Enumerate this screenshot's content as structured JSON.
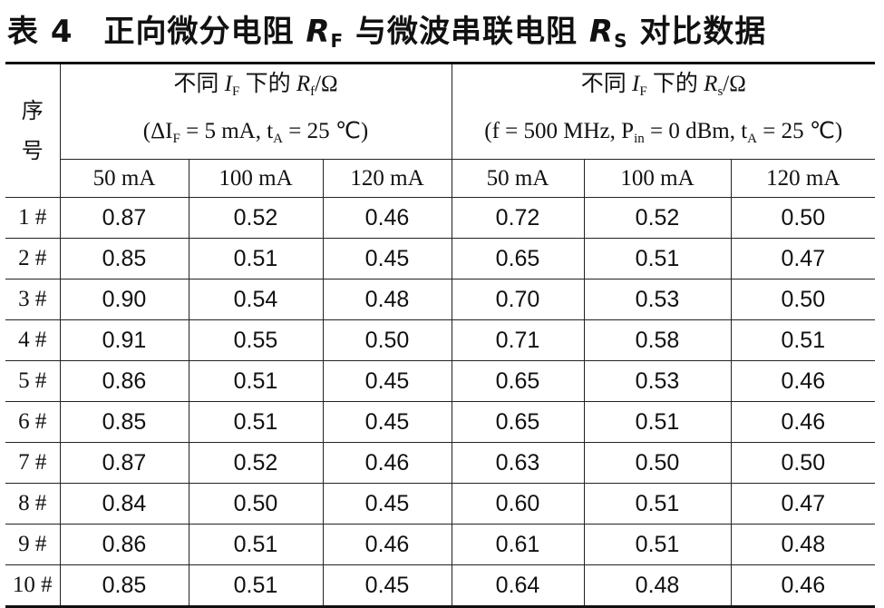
{
  "title": {
    "prefix": "表 4",
    "text_a": "正向微分电阻",
    "sym_a": "R",
    "sub_a": "F",
    "text_b": "与微波串联电阻",
    "sym_b": "R",
    "sub_b": "S",
    "text_c": "对比数据"
  },
  "table": {
    "index_header": [
      "序",
      "号"
    ],
    "group_rf": {
      "line1_pre": "不同",
      "line1_sym": "I",
      "line1_sub": "F",
      "line1_mid": "下的",
      "line1_sym2": "R",
      "line1_sub2": "f",
      "line1_unit": "/Ω",
      "line2": "(ΔI",
      "line2_sub": "F",
      "line2_rest": " = 5 mA, t",
      "line2_sub2": "A",
      "line2_end": " = 25 ℃)"
    },
    "group_rs": {
      "line1_pre": "不同",
      "line1_sym": "I",
      "line1_sub": "F",
      "line1_mid": "下的",
      "line1_sym2": "R",
      "line1_sub2": "s",
      "line1_unit": "/Ω",
      "line2": "(f = 500 MHz, P",
      "line2_sub": "in",
      "line2_rest": " = 0 dBm, t",
      "line2_sub2": "A",
      "line2_end": " = 25 ℃)"
    },
    "columns": [
      "50 mA",
      "100 mA",
      "120 mA",
      "50 mA",
      "100 mA",
      "120 mA"
    ],
    "rows": [
      {
        "id": "1 #",
        "values": [
          "0.87",
          "0.52",
          "0.46",
          "0.72",
          "0.52",
          "0.50"
        ]
      },
      {
        "id": "2 #",
        "values": [
          "0.85",
          "0.51",
          "0.45",
          "0.65",
          "0.51",
          "0.47"
        ]
      },
      {
        "id": "3 #",
        "values": [
          "0.90",
          "0.54",
          "0.48",
          "0.70",
          "0.53",
          "0.50"
        ]
      },
      {
        "id": "4 #",
        "values": [
          "0.91",
          "0.55",
          "0.50",
          "0.71",
          "0.58",
          "0.51"
        ]
      },
      {
        "id": "5 #",
        "values": [
          "0.86",
          "0.51",
          "0.45",
          "0.65",
          "0.53",
          "0.46"
        ]
      },
      {
        "id": "6 #",
        "values": [
          "0.85",
          "0.51",
          "0.45",
          "0.65",
          "0.51",
          "0.46"
        ]
      },
      {
        "id": "7 #",
        "values": [
          "0.87",
          "0.52",
          "0.46",
          "0.63",
          "0.50",
          "0.50"
        ]
      },
      {
        "id": "8 #",
        "values": [
          "0.84",
          "0.50",
          "0.45",
          "0.60",
          "0.51",
          "0.47"
        ]
      },
      {
        "id": "9 #",
        "values": [
          "0.86",
          "0.51",
          "0.46",
          "0.61",
          "0.51",
          "0.48"
        ]
      },
      {
        "id": "10 #",
        "values": [
          "0.85",
          "0.51",
          "0.45",
          "0.64",
          "0.48",
          "0.46"
        ]
      }
    ]
  }
}
